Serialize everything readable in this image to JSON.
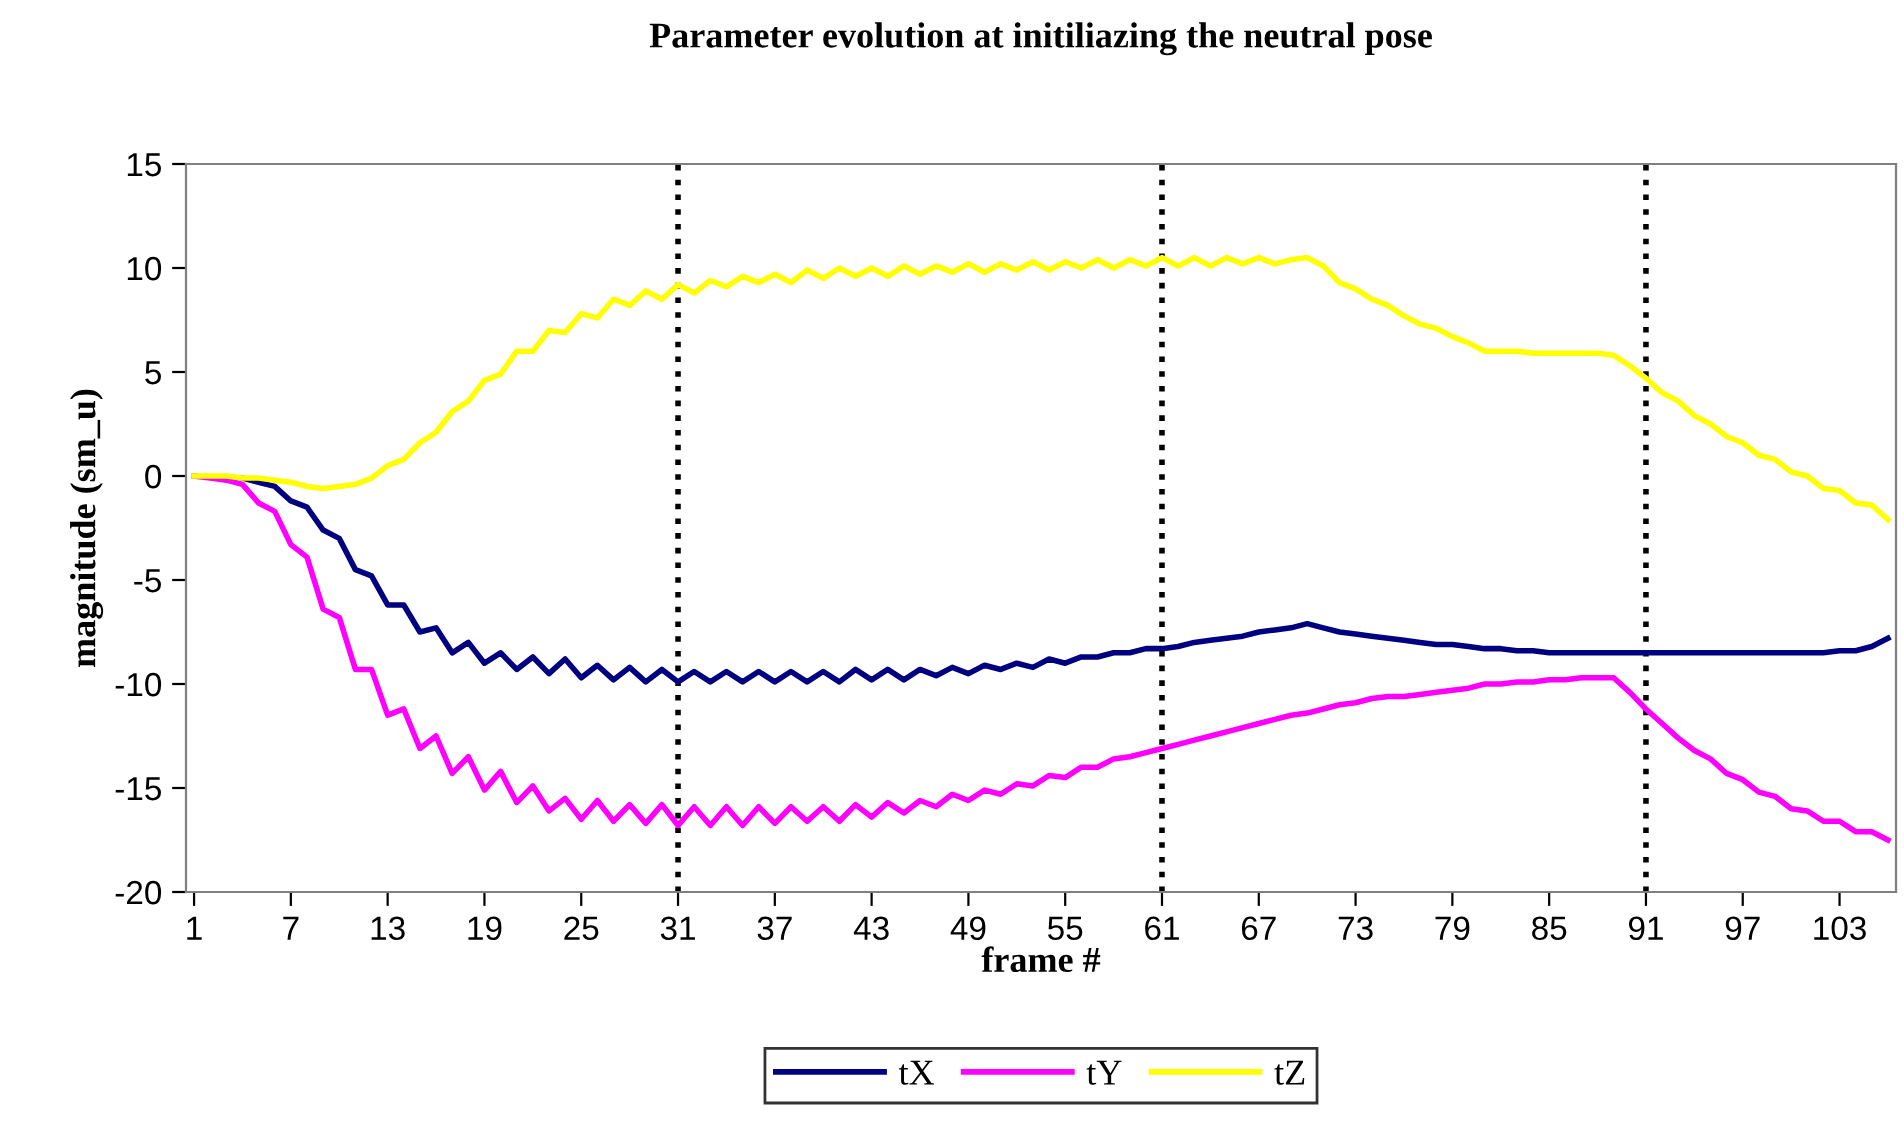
{
  "chart_data": {
    "type": "line",
    "title": "Parameter evolution at initiliazing the neutral pose",
    "xlabel": "frame #",
    "ylabel": "magnitude (sm_u)",
    "x": [
      1,
      2,
      3,
      4,
      5,
      6,
      7,
      8,
      9,
      10,
      11,
      12,
      13,
      14,
      15,
      16,
      17,
      18,
      19,
      20,
      21,
      22,
      23,
      24,
      25,
      26,
      27,
      28,
      29,
      30,
      31,
      32,
      33,
      34,
      35,
      36,
      37,
      38,
      39,
      40,
      41,
      42,
      43,
      44,
      45,
      46,
      47,
      48,
      49,
      50,
      51,
      52,
      53,
      54,
      55,
      56,
      57,
      58,
      59,
      60,
      61,
      62,
      63,
      64,
      65,
      66,
      67,
      68,
      69,
      70,
      71,
      72,
      73,
      74,
      75,
      76,
      77,
      78,
      79,
      80,
      81,
      82,
      83,
      84,
      85,
      86,
      87,
      88,
      89,
      90,
      91,
      92,
      93,
      94,
      95,
      96,
      97,
      98,
      99,
      100,
      101,
      102,
      103,
      104,
      105,
      106
    ],
    "xlim": [
      0.5,
      106.5
    ],
    "xticks": [
      1,
      7,
      13,
      19,
      25,
      31,
      37,
      43,
      49,
      55,
      61,
      67,
      73,
      79,
      85,
      91,
      97,
      103
    ],
    "ylim": [
      -20,
      15
    ],
    "yticks": [
      -20,
      -15,
      -10,
      -5,
      0,
      5,
      10,
      15
    ],
    "grid": false,
    "legend": "bottom",
    "marker": "none",
    "line_style": "solid",
    "ref_lines": [
      {
        "axis": "x",
        "value": 31,
        "color": "#000000",
        "line_style": "dotted"
      },
      {
        "axis": "x",
        "value": 61,
        "color": "#000000",
        "line_style": "dotted"
      },
      {
        "axis": "x",
        "value": 91,
        "color": "#000000",
        "line_style": "dotted"
      }
    ],
    "series": [
      {
        "name": "tX",
        "color": "#000080",
        "values": [
          null,
          null,
          null,
          -0.1,
          -0.3,
          -0.5,
          -1.2,
          -1.5,
          -2.6,
          -3.0,
          -4.5,
          -4.8,
          -6.2,
          -6.2,
          -7.5,
          -7.3,
          -8.5,
          -8.0,
          -9.0,
          -8.5,
          -9.3,
          -8.7,
          -9.5,
          -8.8,
          -9.7,
          -9.1,
          -9.8,
          -9.2,
          -9.9,
          -9.3,
          -9.9,
          -9.4,
          -9.9,
          -9.4,
          -9.9,
          -9.4,
          -9.9,
          -9.4,
          -9.9,
          -9.4,
          -9.9,
          -9.3,
          -9.8,
          -9.3,
          -9.8,
          -9.3,
          -9.6,
          -9.2,
          -9.5,
          -9.1,
          -9.3,
          -9.0,
          -9.2,
          -8.8,
          -9.0,
          -8.7,
          -8.7,
          -8.5,
          -8.5,
          -8.3,
          -8.3,
          -8.2,
          -8.0,
          -7.9,
          -7.8,
          -7.7,
          -7.5,
          -7.4,
          -7.3,
          -7.1,
          -7.3,
          -7.5,
          -7.6,
          -7.7,
          -7.8,
          -7.9,
          -8.0,
          -8.1,
          -8.1,
          -8.2,
          -8.3,
          -8.3,
          -8.4,
          -8.4,
          -8.5,
          -8.5,
          -8.5,
          -8.5,
          -8.5,
          -8.5,
          -8.5,
          -8.5,
          -8.5,
          -8.5,
          -8.5,
          -8.5,
          -8.5,
          -8.5,
          -8.5,
          -8.5,
          -8.5,
          -8.5,
          -8.4,
          -8.4,
          -8.2,
          -7.8
        ]
      },
      {
        "name": "tY",
        "color": "#ff00ff",
        "values": [
          0,
          -0.1,
          -0.2,
          -0.4,
          -1.3,
          -1.7,
          -3.3,
          -3.9,
          -6.4,
          -6.8,
          -9.3,
          -9.3,
          -11.5,
          -11.2,
          -13.1,
          -12.5,
          -14.3,
          -13.5,
          -15.1,
          -14.2,
          -15.7,
          -14.9,
          -16.1,
          -15.5,
          -16.5,
          -15.6,
          -16.6,
          -15.8,
          -16.7,
          -15.8,
          -16.8,
          -15.9,
          -16.8,
          -15.9,
          -16.8,
          -15.9,
          -16.7,
          -15.9,
          -16.6,
          -15.9,
          -16.6,
          -15.8,
          -16.4,
          -15.7,
          -16.2,
          -15.6,
          -15.9,
          -15.3,
          -15.6,
          -15.1,
          -15.3,
          -14.8,
          -14.9,
          -14.4,
          -14.5,
          -14.0,
          -14.0,
          -13.6,
          -13.5,
          -13.3,
          -13.1,
          -12.9,
          -12.7,
          -12.5,
          -12.3,
          -12.1,
          -11.9,
          -11.7,
          -11.5,
          -11.4,
          -11.2,
          -11.0,
          -10.9,
          -10.7,
          -10.6,
          -10.6,
          -10.5,
          -10.4,
          -10.3,
          -10.2,
          -10.0,
          -10.0,
          -9.9,
          -9.9,
          -9.8,
          -9.8,
          -9.7,
          -9.7,
          -9.7,
          -10.4,
          -11.2,
          -11.9,
          -12.6,
          -13.2,
          -13.6,
          -14.3,
          -14.6,
          -15.2,
          -15.4,
          -16.0,
          -16.1,
          -16.6,
          -16.6,
          -17.1,
          -17.1,
          -17.5
        ]
      },
      {
        "name": "tZ",
        "color": "#ffff00",
        "values": [
          0,
          0,
          0,
          -0.1,
          -0.1,
          -0.2,
          -0.3,
          -0.5,
          -0.6,
          -0.5,
          -0.4,
          -0.1,
          0.5,
          0.8,
          1.6,
          2.1,
          3.1,
          3.6,
          4.6,
          4.9,
          6.0,
          6.0,
          7.0,
          6.9,
          7.8,
          7.6,
          8.5,
          8.2,
          8.9,
          8.5,
          9.2,
          8.8,
          9.4,
          9.1,
          9.6,
          9.3,
          9.7,
          9.3,
          9.9,
          9.5,
          10.0,
          9.6,
          10.0,
          9.6,
          10.1,
          9.7,
          10.1,
          9.8,
          10.2,
          9.8,
          10.2,
          9.9,
          10.3,
          9.9,
          10.3,
          10.0,
          10.4,
          10.0,
          10.4,
          10.1,
          10.5,
          10.1,
          10.5,
          10.1,
          10.5,
          10.2,
          10.5,
          10.2,
          10.4,
          10.5,
          10.1,
          9.3,
          9.0,
          8.5,
          8.2,
          7.7,
          7.3,
          7.1,
          6.7,
          6.4,
          6.0,
          6.0,
          6.0,
          5.9,
          5.9,
          5.9,
          5.9,
          5.9,
          5.8,
          5.3,
          4.7,
          4.0,
          3.6,
          2.9,
          2.5,
          1.9,
          1.6,
          1.0,
          0.8,
          0.2,
          0.0,
          -0.6,
          -0.7,
          -1.3,
          -1.4,
          -2.1
        ]
      }
    ]
  }
}
